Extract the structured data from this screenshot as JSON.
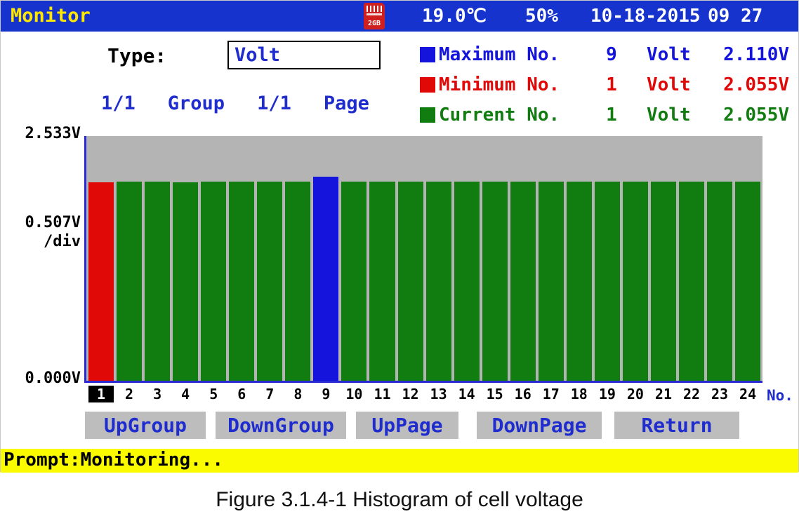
{
  "titlebar": {
    "title": "Monitor",
    "sd_label": "2GB",
    "temperature": "19.0℃",
    "humidity": "50%",
    "date": "10-18-2015",
    "time": "09 27"
  },
  "type": {
    "label": "Type:",
    "value": "Volt"
  },
  "legend": [
    {
      "label": "Maximum No.",
      "no": "9",
      "unit": "Volt",
      "value": "2.110V",
      "color": "#1414dd"
    },
    {
      "label": "Minimum No.",
      "no": "1",
      "unit": "Volt",
      "value": "2.055V",
      "color": "#e10808"
    },
    {
      "label": "Current No.",
      "no": "1",
      "unit": "Volt",
      "value": "2.055V",
      "color": "#117d11"
    }
  ],
  "pagination": {
    "group_value": "1/1",
    "group_label": "Group",
    "page_value": "1/1",
    "page_label": "Page"
  },
  "chart_data": {
    "type": "bar",
    "title": "",
    "categories": [
      1,
      2,
      3,
      4,
      5,
      6,
      7,
      8,
      9,
      10,
      11,
      12,
      13,
      14,
      15,
      16,
      17,
      18,
      19,
      20,
      21,
      22,
      23,
      24
    ],
    "values": [
      2.055,
      2.06,
      2.062,
      2.056,
      2.061,
      2.06,
      2.062,
      2.058,
      2.11,
      2.058,
      2.061,
      2.06,
      2.062,
      2.06,
      2.061,
      2.059,
      2.06,
      2.062,
      2.06,
      2.061,
      2.06,
      2.059,
      2.061,
      2.06
    ],
    "ylim": [
      0,
      2.533
    ],
    "y_axis": {
      "top_label": "2.533V",
      "div_label": "0.507V",
      "div_suffix": "/div",
      "bottom_label": "0.000V"
    },
    "x_axis_label": "No.",
    "selected_category": 1,
    "bar_colors": {
      "default": "#117d11",
      "1": "#e10808",
      "9": "#1414dd"
    },
    "plot_background": "#b4b4b4",
    "grid": false,
    "legend_position": "top-right"
  },
  "buttons": [
    "UpGroup",
    "DownGroup",
    "UpPage",
    "DownPage",
    "Return"
  ],
  "prompt": {
    "text": "Prompt:Monitoring..."
  },
  "caption": "Figure 3.1.4-1 Histogram of cell voltage",
  "colors": {
    "titlebar_background": "#1733cd",
    "title_text": "#ffe800",
    "device_blue_text": "#1f2cce",
    "prompt_background": "#fbfb00",
    "button_background": "#bdbdbd",
    "axis_blue": "#2a2ad2"
  }
}
